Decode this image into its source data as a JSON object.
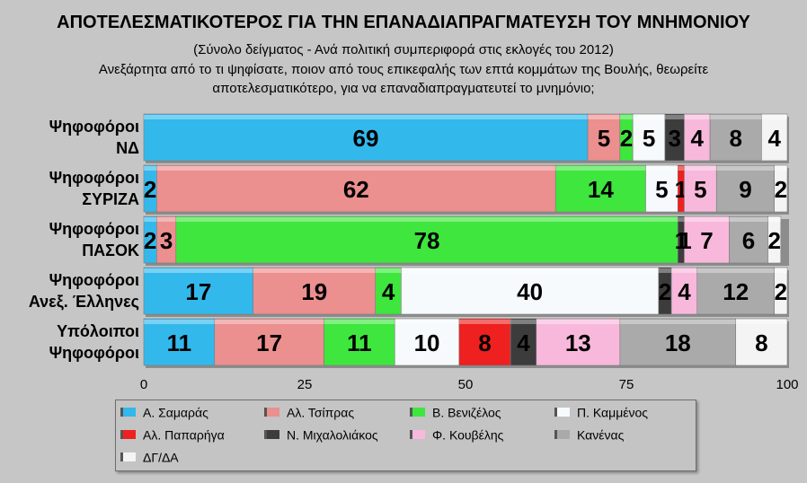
{
  "chart_data": {
    "type": "bar",
    "orientation": "horizontal",
    "stacked": true,
    "title": "ΑΠΟΤΕΛΕΣΜΑΤΙΚΟΤΕΡΟΣ ΓΙΑ ΤΗΝ ΕΠΑΝΑΔΙΑΠΡΑΓΜΑΤΕΥΣΗ ΤΟΥ ΜΝΗΜΟΝΙΟΥ",
    "subtitle": [
      "(Σύνολο δείγματος - Ανά πολιτική συμπεριφορά στις εκλογές του 2012)",
      "Ανεξάρτητα από το τι ψηφίσατε, ποιον από τους επικεφαλής των επτά κομμάτων της Βουλής, θεωρείτε",
      "αποτελεσματικότερο, για να επαναδιαπραγματευτεί το μνημόνιο;"
    ],
    "categories": [
      [
        "Ψηφοφόροι",
        "ΝΔ"
      ],
      [
        "Ψηφοφόροι",
        "ΣΥΡΙΖΑ"
      ],
      [
        "Ψηφοφόροι",
        "ΠΑΣΟΚ"
      ],
      [
        "Ψηφοφόροι",
        "Ανεξ. Έλληνες"
      ],
      [
        "Υπόλοιποι",
        "Ψηφοφόροι"
      ]
    ],
    "series": [
      {
        "name": "Α. Σαμαράς",
        "color": "#33b8ec",
        "values": [
          69,
          2,
          2,
          17,
          11
        ]
      },
      {
        "name": "Αλ. Τσίπρας",
        "color": "#ec8f8f",
        "values": [
          5,
          62,
          3,
          19,
          17
        ]
      },
      {
        "name": "Β. Βενιζέλος",
        "color": "#3ee63e",
        "values": [
          2,
          14,
          78,
          4,
          11
        ]
      },
      {
        "name": "Π. Καμμένος",
        "color": "#f6fafc",
        "values": [
          5,
          5,
          0,
          40,
          10
        ]
      },
      {
        "name": "Αλ. Παπαρήγα",
        "color": "#ee2020",
        "values": [
          0,
          1,
          0,
          0,
          8
        ]
      },
      {
        "name": "Ν. Μιχαλολιάκος",
        "color": "#3c3c3c",
        "values": [
          3,
          0,
          1,
          2,
          4
        ]
      },
      {
        "name": "Φ. Κουβέλης",
        "color": "#f8b8dc",
        "values": [
          4,
          5,
          7,
          4,
          13
        ]
      },
      {
        "name": "Κανένας",
        "color": "#aaaaaa",
        "values": [
          8,
          9,
          6,
          12,
          18
        ]
      },
      {
        "name": "ΔΓ/ΔΑ",
        "color": "#f4f4f4",
        "values": [
          4,
          2,
          2,
          2,
          8
        ]
      }
    ],
    "data_labels": [
      [
        "69",
        "5",
        "2",
        "5",
        "",
        "3",
        "4",
        "8",
        "4"
      ],
      [
        "2",
        "62",
        "14",
        "5",
        "1",
        "",
        "5",
        "9",
        "2"
      ],
      [
        "2",
        "3",
        "78",
        "",
        "",
        "1",
        "7",
        "6",
        "2"
      ],
      [
        "17",
        "19",
        "4",
        "40",
        "",
        "2",
        "4",
        "12",
        "2"
      ],
      [
        "11",
        "17",
        "11",
        "10",
        "8",
        "4",
        "13",
        "18",
        "8"
      ]
    ],
    "extra_labels": [
      {
        "row": 2,
        "text": "1",
        "after_series": 2
      }
    ],
    "x_ticks": [
      "0",
      "25",
      "50",
      "75",
      "100"
    ],
    "xlim": [
      0,
      100
    ],
    "legend_position": "bottom",
    "grid": false
  }
}
